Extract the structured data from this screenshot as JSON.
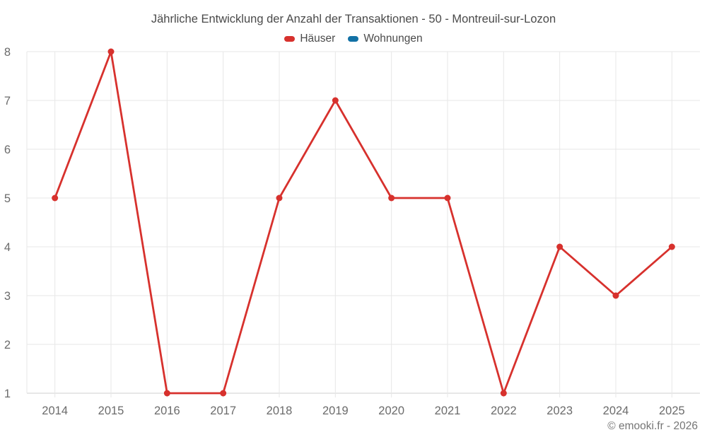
{
  "chart": {
    "title": "Jährliche Entwicklung der Anzahl der Transaktionen - 50 - Montreuil-sur-Lozon",
    "copyright": "© emooki.fr - 2026"
  },
  "chart_data": {
    "type": "line",
    "title": "Jährliche Entwicklung der Anzahl der Transaktionen - 50 - Montreuil-sur-Lozon",
    "categories": [
      "2014",
      "2015",
      "2016",
      "2017",
      "2018",
      "2019",
      "2020",
      "2021",
      "2022",
      "2023",
      "2024",
      "2025"
    ],
    "series": [
      {
        "name": "Häuser",
        "color": "#d7312d",
        "values": [
          5,
          8,
          1,
          1,
          5,
          7,
          5,
          5,
          1,
          4,
          3,
          4
        ]
      },
      {
        "name": "Wohnungen",
        "color": "#1271a5",
        "values": []
      }
    ],
    "xlabel": "",
    "ylabel": "",
    "ylim": [
      1,
      8
    ],
    "yticks": [
      1,
      2,
      3,
      4,
      5,
      6,
      7,
      8
    ],
    "grid": true,
    "legend_position": "top",
    "marker_radius": 4.5
  }
}
